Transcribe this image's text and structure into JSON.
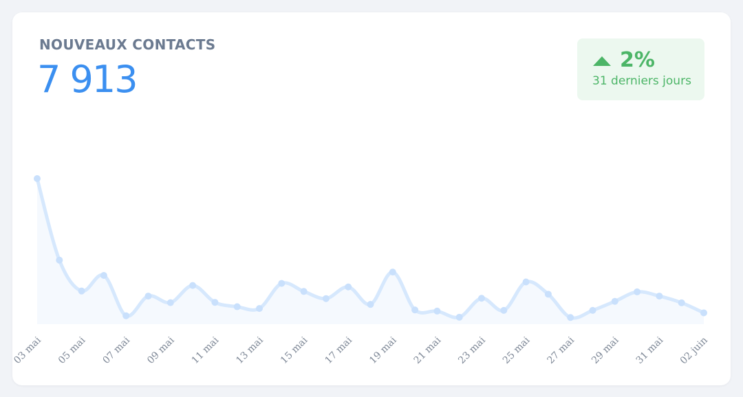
{
  "widget": {
    "title": "NOUVEAUX CONTACTS",
    "total": "7 913",
    "trend": {
      "direction": "up",
      "percent": "2%",
      "period": "31 derniers jours",
      "color": "#4cb567"
    }
  },
  "colors": {
    "accent": "#3b8ff0",
    "line": "#d6e8fd",
    "area": "#f5f9fe",
    "point": "#c9e0fc"
  },
  "chart_data": {
    "type": "area",
    "x": [
      "03 mai",
      "04 mai",
      "05 mai",
      "06 mai",
      "07 mai",
      "08 mai",
      "09 mai",
      "10 mai",
      "11 mai",
      "12 mai",
      "13 mai",
      "14 mai",
      "15 mai",
      "16 mai",
      "17 mai",
      "18 mai",
      "19 mai",
      "20 mai",
      "21 mai",
      "22 mai",
      "23 mai",
      "24 mai",
      "25 mai",
      "26 mai",
      "27 mai",
      "28 mai",
      "29 mai",
      "30 mai",
      "31 mai",
      "01 juin",
      "02 juin"
    ],
    "tick_labels": [
      "03 mai",
      "05 mai",
      "07 mai",
      "09 mai",
      "11 mai",
      "13 mai",
      "15 mai",
      "17 mai",
      "19 mai",
      "21 mai",
      "23 mai",
      "25 mai",
      "27 mai",
      "29 mai",
      "31 mai",
      "02 juin"
    ],
    "values": [
      1000,
      440,
      228,
      335,
      58,
      193,
      148,
      266,
      150,
      120,
      108,
      280,
      225,
      176,
      256,
      136,
      358,
      98,
      90,
      48,
      178,
      95,
      290,
      206,
      46,
      95,
      157,
      222,
      193,
      147,
      78
    ],
    "ylim": [
      0,
      1000
    ],
    "grid": false,
    "legend": "none"
  }
}
